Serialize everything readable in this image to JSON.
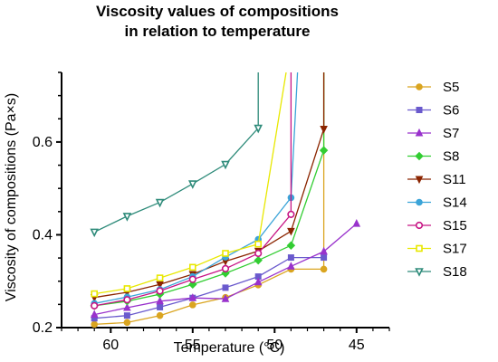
{
  "chart_data": {
    "type": "line",
    "title_line1": "Viscosity values of compositions",
    "title_line2": "in relation to temperature",
    "xlabel": "Temperature (°C)",
    "ylabel": "Viscosity of compositions (Pa×s)",
    "xlim": [
      63,
      43
    ],
    "ylim": [
      0.2,
      0.75
    ],
    "x_reversed": true,
    "x_ticks": [
      60,
      55,
      50,
      45
    ],
    "y_ticks": [
      0.2,
      0.4,
      0.6
    ],
    "y_tick_labels": [
      "0.2",
      "0.4",
      "0.6"
    ],
    "legend_position": "right",
    "grid": false,
    "series": [
      {
        "name": "S5",
        "color": "#DAA520",
        "marker": "circle-filled",
        "x": [
          61,
          59,
          57,
          55,
          53,
          51,
          49,
          47,
          47
        ],
        "y": [
          0.207,
          0.211,
          0.226,
          0.249,
          0.265,
          0.292,
          0.326,
          0.326,
          0.75
        ]
      },
      {
        "name": "S6",
        "color": "#6A5ACD",
        "marker": "square-filled",
        "x": [
          61,
          59,
          57,
          55,
          53,
          51,
          49,
          47
        ],
        "y": [
          0.22,
          0.226,
          0.244,
          0.264,
          0.286,
          0.31,
          0.351,
          0.351
        ]
      },
      {
        "name": "S7",
        "color": "#9932CC",
        "marker": "triangle-up-filled",
        "x": [
          61,
          59,
          57,
          55,
          53,
          51,
          49,
          47,
          45
        ],
        "y": [
          0.228,
          0.243,
          0.257,
          0.264,
          0.262,
          0.298,
          0.332,
          0.364,
          0.424
        ]
      },
      {
        "name": "S8",
        "color": "#32CD32",
        "marker": "diamond-filled",
        "x": [
          61,
          59,
          57,
          55,
          53,
          51,
          49,
          47,
          47
        ],
        "y": [
          0.247,
          0.257,
          0.272,
          0.293,
          0.317,
          0.345,
          0.377,
          0.582,
          0.75
        ]
      },
      {
        "name": "S11",
        "color": "#8B2500",
        "marker": "triangle-down-filled",
        "x": [
          61,
          59,
          57,
          55,
          53,
          51,
          49,
          47,
          47
        ],
        "y": [
          0.265,
          0.276,
          0.293,
          0.315,
          0.343,
          0.365,
          0.408,
          0.628,
          0.75
        ]
      },
      {
        "name": "S14",
        "color": "#3BA4D8",
        "marker": "circle-filled",
        "x": [
          61,
          59,
          57,
          55,
          53,
          51,
          49,
          48.6
        ],
        "y": [
          0.252,
          0.266,
          0.282,
          0.31,
          0.352,
          0.39,
          0.48,
          0.75
        ]
      },
      {
        "name": "S15",
        "color": "#C71585",
        "marker": "circle-open",
        "x": [
          61,
          59,
          57,
          55,
          53,
          51,
          49,
          49
        ],
        "y": [
          0.247,
          0.26,
          0.279,
          0.304,
          0.327,
          0.36,
          0.444,
          0.75
        ]
      },
      {
        "name": "S17",
        "color": "#E8E800",
        "marker": "square-open",
        "x": [
          61,
          59,
          57,
          55,
          53,
          51,
          49.3
        ],
        "y": [
          0.273,
          0.284,
          0.307,
          0.33,
          0.36,
          0.38,
          0.75
        ]
      },
      {
        "name": "S18",
        "color": "#2E8B7A",
        "marker": "triangle-down-open",
        "x": [
          61,
          59,
          57,
          55,
          53,
          51,
          51
        ],
        "y": [
          0.406,
          0.44,
          0.47,
          0.51,
          0.552,
          0.63,
          0.75
        ]
      }
    ]
  }
}
